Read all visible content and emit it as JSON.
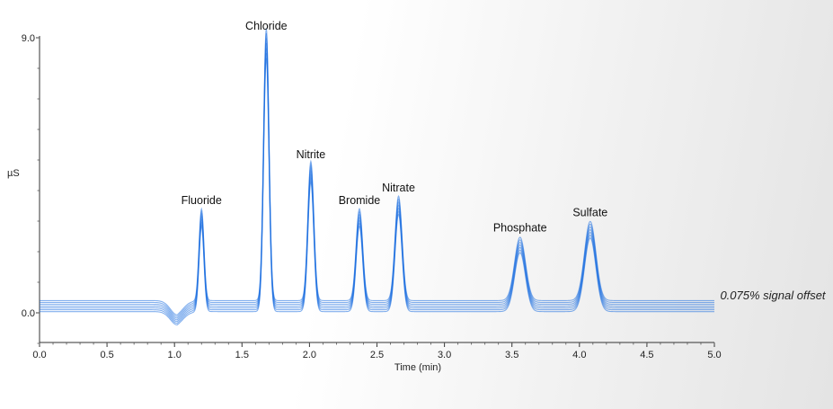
{
  "chart_data": {
    "type": "line",
    "xlabel": "Time (min)",
    "ylabel": "µS",
    "xlim": [
      0.0,
      5.0
    ],
    "ylim": [
      -1.0,
      9.0
    ],
    "x_ticks": [
      "0.0",
      "0.5",
      "1.0",
      "1.5",
      "2.0",
      "2.5",
      "3.0",
      "3.5",
      "4.0",
      "4.5",
      "5.0"
    ],
    "y_ticks": [
      "0.0",
      "9.0"
    ],
    "baseline": 0.22,
    "overlay_count": 7,
    "overlay_offset_range": [
      -0.18,
      0.18
    ],
    "dip": {
      "time": 1.02,
      "depth": -0.45,
      "width": 0.05
    },
    "peaks": [
      {
        "name": "Fluoride",
        "time": 1.2,
        "height": 2.9,
        "width": 0.018
      },
      {
        "name": "Chloride",
        "time": 1.68,
        "height": 8.6,
        "width": 0.02
      },
      {
        "name": "Nitrite",
        "time": 2.01,
        "height": 4.4,
        "width": 0.022
      },
      {
        "name": "Bromide",
        "time": 2.37,
        "height": 2.9,
        "width": 0.024
      },
      {
        "name": "Nitrate",
        "time": 2.66,
        "height": 3.3,
        "width": 0.026
      },
      {
        "name": "Phosphate",
        "time": 3.56,
        "height": 2.0,
        "width": 0.04
      },
      {
        "name": "Sulfate",
        "time": 4.08,
        "height": 2.5,
        "width": 0.042
      }
    ],
    "line_color": "#1e6fe0",
    "grid": false
  },
  "annotation": "0.075% signal offset"
}
